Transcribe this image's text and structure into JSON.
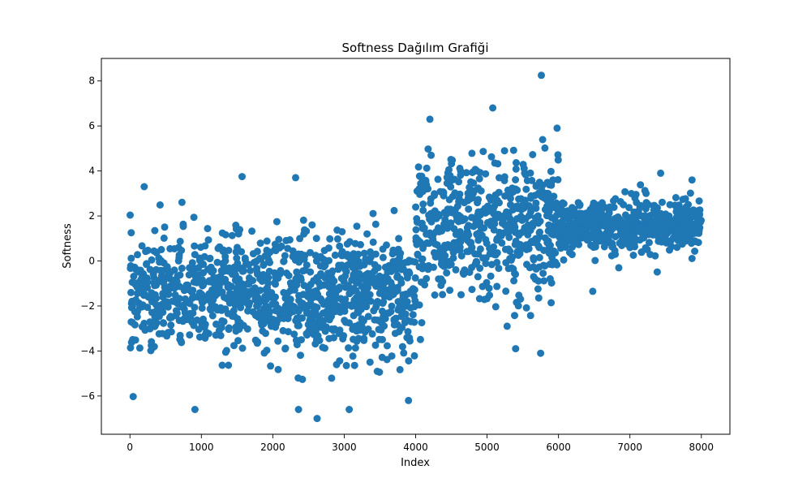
{
  "chart_data": {
    "type": "scatter",
    "title": "Softness Dağılım Grafiği",
    "xlabel": "Index",
    "ylabel": "Softness",
    "xlim": [
      -400,
      8400
    ],
    "ylim": [
      -7.7,
      9.0
    ],
    "x_ticks": [
      0,
      1000,
      2000,
      3000,
      4000,
      5000,
      6000,
      7000,
      8000
    ],
    "y_ticks": [
      -6,
      -4,
      -2,
      0,
      2,
      4,
      6,
      8
    ],
    "grid": false,
    "legend": "none",
    "color": "#1f77b4",
    "n_points": 8000,
    "segments": [
      {
        "x_range": [
          0,
          4000
        ],
        "mean": -1.5,
        "spread_sd": 1.3,
        "min": -7.0,
        "max": 3.8
      },
      {
        "x_range": [
          4000,
          6000
        ],
        "mean": 1.5,
        "spread_sd": 1.5,
        "min": -4.1,
        "max": 8.2
      },
      {
        "x_range": [
          6000,
          8000
        ],
        "mean": 1.5,
        "spread_sd": 0.6,
        "min": -1.4,
        "max": 3.9
      }
    ],
    "notable_points": [
      {
        "x": 200,
        "y": 3.3
      },
      {
        "x": 1570,
        "y": 3.75
      },
      {
        "x": 2320,
        "y": 3.7
      },
      {
        "x": 2620,
        "y": -7.0
      },
      {
        "x": 3070,
        "y": -6.6
      },
      {
        "x": 910,
        "y": -6.6
      },
      {
        "x": 2360,
        "y": -6.6
      },
      {
        "x": 3900,
        "y": -6.2
      },
      {
        "x": 4200,
        "y": 6.3
      },
      {
        "x": 5080,
        "y": 6.8
      },
      {
        "x": 5760,
        "y": 8.25
      },
      {
        "x": 5750,
        "y": -4.1
      },
      {
        "x": 5400,
        "y": -3.9
      },
      {
        "x": 5980,
        "y": 5.9
      },
      {
        "x": 6480,
        "y": -1.35
      },
      {
        "x": 7430,
        "y": 3.9
      },
      {
        "x": 7870,
        "y": 3.6
      }
    ]
  }
}
